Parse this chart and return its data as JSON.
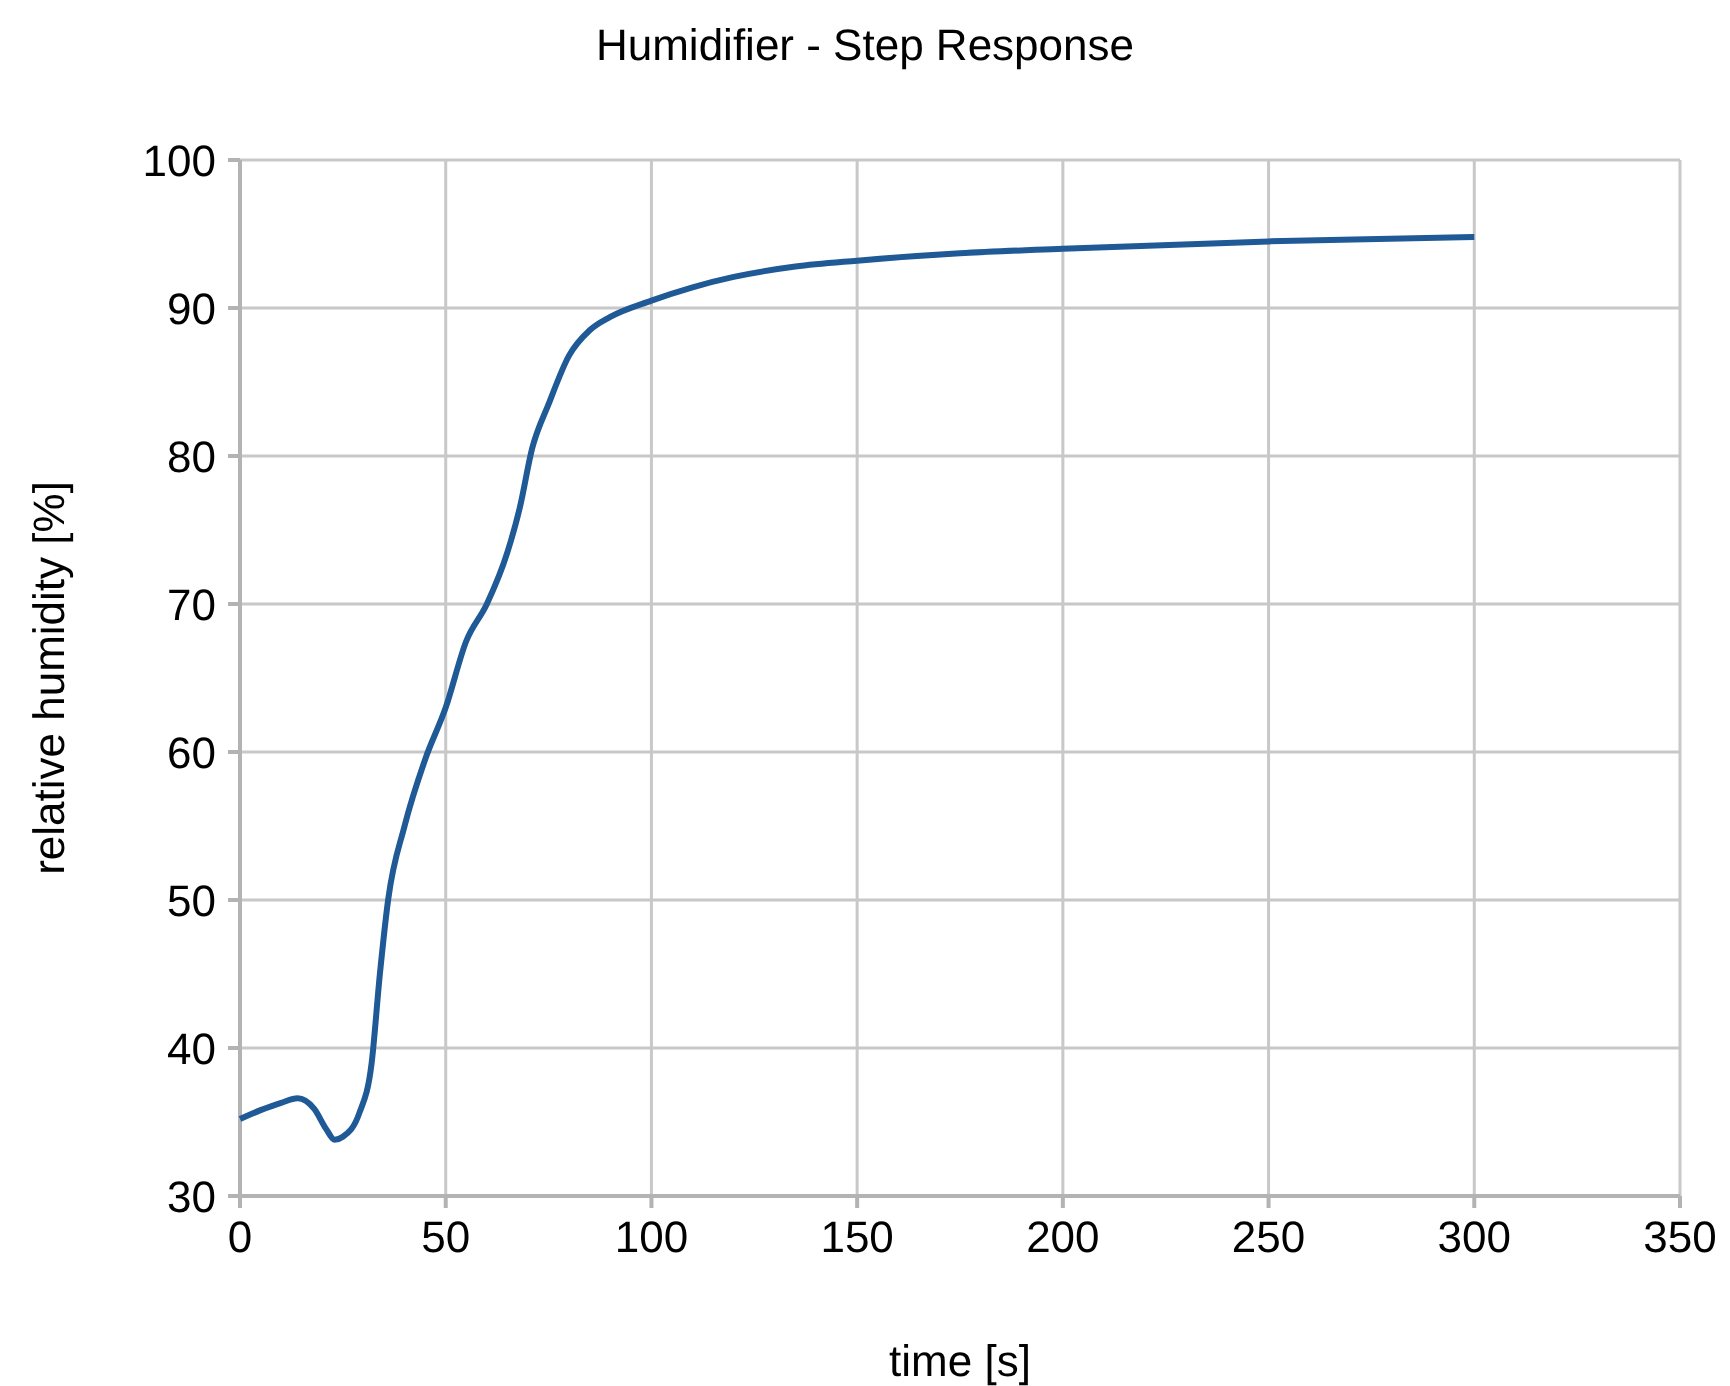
{
  "chart_data": {
    "type": "line",
    "title": "Humidifier - Step Response",
    "xlabel": "time [s]",
    "ylabel": "relative humidity [%]",
    "x": [
      0,
      5,
      10,
      14,
      18,
      21,
      23,
      25,
      29,
      32,
      34,
      36,
      40,
      45,
      50,
      55,
      60,
      65,
      68,
      71,
      75,
      80,
      85,
      90,
      100,
      110,
      120,
      135,
      150,
      175,
      200,
      250,
      300
    ],
    "series": [
      {
        "color": "#1f5a96",
        "values": [
          35.2,
          35.8,
          36.3,
          36.6,
          35.9,
          34.5,
          33.8,
          34.0,
          35.6,
          39,
          45,
          50,
          55,
          59.5,
          63,
          67.5,
          70,
          73.5,
          76.5,
          80.5,
          83.5,
          86.8,
          88.5,
          89.4,
          90.5,
          91.4,
          92.1,
          92.8,
          93.2,
          93.7,
          94.0,
          94.5,
          94.8
        ]
      }
    ],
    "xlim": [
      0,
      350
    ],
    "xticks": [
      0,
      50,
      100,
      150,
      200,
      250,
      300,
      350
    ],
    "ylim": [
      30,
      100
    ],
    "yticks": [
      30,
      40,
      50,
      60,
      70,
      80,
      90,
      100
    ],
    "grid": true,
    "marker": "none",
    "line_style": "solid"
  }
}
